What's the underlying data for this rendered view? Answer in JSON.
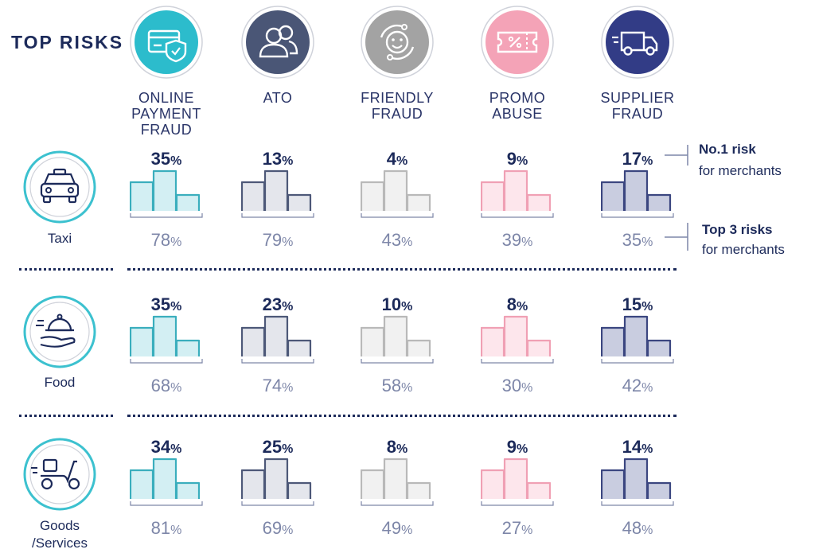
{
  "header": {
    "title": "TOP RISKS"
  },
  "risks": [
    {
      "label": "ONLINE\nPAYMENT\nFRAUD",
      "icon": "card-shield-icon",
      "circle": "#2cbccc",
      "fill": "#d3eff3",
      "stroke": "#3aaebd"
    },
    {
      "label": "ATO",
      "icon": "users-icon",
      "circle": "#4a5676",
      "fill": "#e4e6ec",
      "stroke": "#4d5878"
    },
    {
      "label": "FRIENDLY\nFRAUD",
      "icon": "smile-cycle-icon",
      "circle": "#a3a3a3",
      "fill": "#f1f1f1",
      "stroke": "#b9b9b9"
    },
    {
      "label": "PROMO\nABUSE",
      "icon": "coupon-icon",
      "circle": "#f4a3b7",
      "fill": "#fde6ec",
      "stroke": "#f0a0b4"
    },
    {
      "label": "SUPPLIER\nFRAUD",
      "icon": "delivery-van-icon",
      "circle": "#323c86",
      "fill": "#c9cde0",
      "stroke": "#3b4680"
    }
  ],
  "segments": [
    {
      "label": "Taxi",
      "icon": "taxi-icon"
    },
    {
      "label": "Food",
      "icon": "food-delivery-icon"
    },
    {
      "label": "Goods\n/Services",
      "icon": "scooter-icon"
    }
  ],
  "legend": {
    "no1_title": "No.1 risk",
    "no1_sub": "for merchants",
    "top3_title": "Top 3 risks",
    "top3_sub": "for merchants"
  },
  "chart_data": {
    "type": "table",
    "categories": [
      "ONLINE PAYMENT FRAUD",
      "ATO",
      "FRIENDLY FRAUD",
      "PROMO ABUSE",
      "SUPPLIER FRAUD"
    ],
    "segments": [
      "Taxi",
      "Food",
      "Goods /Services"
    ],
    "unit": "%",
    "series": [
      {
        "name": "No.1 risk for merchants",
        "values": [
          [
            35,
            13,
            4,
            9,
            17
          ],
          [
            35,
            23,
            10,
            8,
            15
          ],
          [
            34,
            25,
            8,
            9,
            14
          ]
        ]
      },
      {
        "name": "Top 3 risks for merchants",
        "values": [
          [
            78,
            79,
            43,
            39,
            35
          ],
          [
            68,
            74,
            58,
            30,
            42
          ],
          [
            81,
            69,
            49,
            27,
            48
          ]
        ]
      }
    ]
  }
}
